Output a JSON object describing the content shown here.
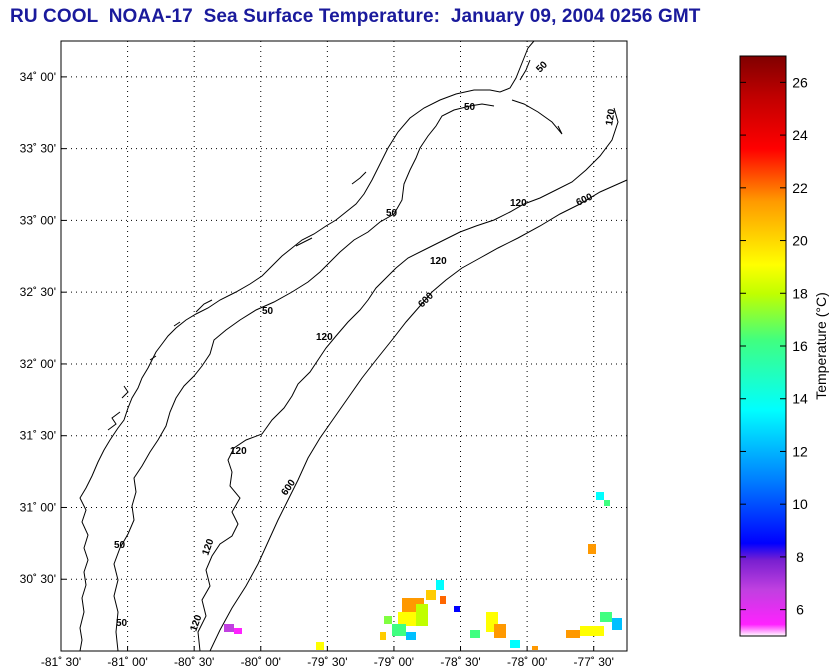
{
  "title": "RU COOL  NOAA-17  Sea Surface Temperature:  January 09, 2004 0256 GMT",
  "map": {
    "lon_range": [
      -81.5,
      -77.25
    ],
    "lat_range": [
      30.0,
      34.25
    ],
    "lon_ticks": [
      {
        "value": -81.5,
        "label": "-81˚ 30'"
      },
      {
        "value": -81.0,
        "label": "-81˚ 00'"
      },
      {
        "value": -80.5,
        "label": "-80˚ 30'"
      },
      {
        "value": -80.0,
        "label": "-80˚ 00'"
      },
      {
        "value": -79.5,
        "label": "-79˚ 30'"
      },
      {
        "value": -79.0,
        "label": "-79˚ 00'"
      },
      {
        "value": -78.5,
        "label": "-78˚ 30'"
      },
      {
        "value": -78.0,
        "label": "-78˚ 00'"
      },
      {
        "value": -77.5,
        "label": "-77˚ 30'"
      }
    ],
    "lat_ticks": [
      {
        "value": 34.0,
        "label": "34˚ 00'"
      },
      {
        "value": 33.5,
        "label": "33˚ 30'"
      },
      {
        "value": 33.0,
        "label": "33˚ 00'"
      },
      {
        "value": 32.5,
        "label": "32˚ 30'"
      },
      {
        "value": 32.0,
        "label": "32˚ 00'"
      },
      {
        "value": 31.5,
        "label": "31˚ 30'"
      },
      {
        "value": 31.0,
        "label": "31˚ 00'"
      },
      {
        "value": 30.5,
        "label": "30˚ 30'"
      }
    ],
    "grid": true,
    "isobath_labels": [
      "50",
      "120",
      "600"
    ]
  },
  "colorbar": {
    "label": "Temperature (°C)",
    "range": [
      5,
      27
    ],
    "tick_labels": [
      "6",
      "8",
      "10",
      "12",
      "14",
      "16",
      "18",
      "20",
      "22",
      "24",
      "26"
    ],
    "colors": [
      "#ffffff",
      "#ff22ff",
      "#c040e0",
      "#7a20d0",
      "#0000ff",
      "#0080ff",
      "#00ffff",
      "#40ff80",
      "#c0ff00",
      "#ffff00",
      "#ff9900",
      "#ff0000",
      "#c00000",
      "#800000"
    ]
  }
}
